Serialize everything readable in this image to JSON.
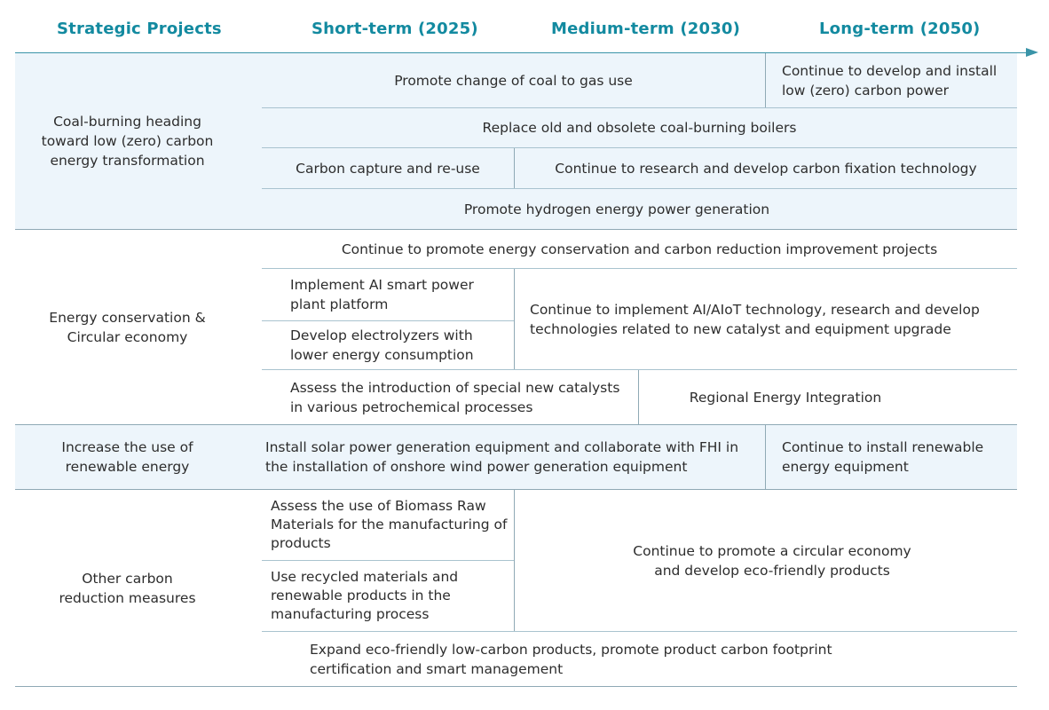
{
  "headers": {
    "projects": "Strategic Projects",
    "short_term": "Short-term (2025)",
    "medium_term": "Medium-term (2030)",
    "long_term": "Long-term (2050)"
  },
  "sections": {
    "coal": {
      "title": "Coal-burning heading toward low (zero) carbon energy transformation",
      "coal_to_gas": "Promote change of coal to gas use",
      "low_carbon_power": "Continue to develop and install low (zero) carbon power",
      "replace_boilers": "Replace old and obsolete coal-burning boilers",
      "carbon_capture": "Carbon capture and re-use",
      "carbon_fixation": "Continue to research and develop carbon fixation technology",
      "hydrogen": "Promote hydrogen energy power generation"
    },
    "energy": {
      "title": "Energy conservation & Circular economy",
      "conservation_projects": "Continue to promote energy conservation and carbon reduction improvement projects",
      "ai_platform": "Implement AI smart power plant platform",
      "electrolyzers": "Develop electrolyzers with lower energy consumption",
      "aiot": "Continue to implement AI/AIoT technology, research and develop technologies related to new catalyst and equipment upgrade",
      "catalysts": "Assess the introduction of special new catalysts in various petrochemical processes",
      "regional": "Regional Energy Integration"
    },
    "renewable": {
      "title": "Increase the use of renewable energy",
      "solar_wind": "Install solar power generation equipment and collaborate with FHI in the installation of onshore wind power generation equipment",
      "continue_renewable": "Continue to install renewable energy equipment"
    },
    "other": {
      "title": "Other carbon reduction measures",
      "biomass": "Assess the use of Biomass Raw Materials for the manufacturing of products",
      "recycled": "Use recycled materials and renewable products in the manufacturing process",
      "circular": "Continue to promote a circular economy and develop eco-friendly products",
      "eco_products": "Expand eco-friendly low-carbon products, promote product carbon footprint certification and smart management"
    }
  },
  "colors": {
    "header_text": "#138aa0",
    "band_fill": "#edf5fb",
    "rule": "#8fa9b5"
  }
}
